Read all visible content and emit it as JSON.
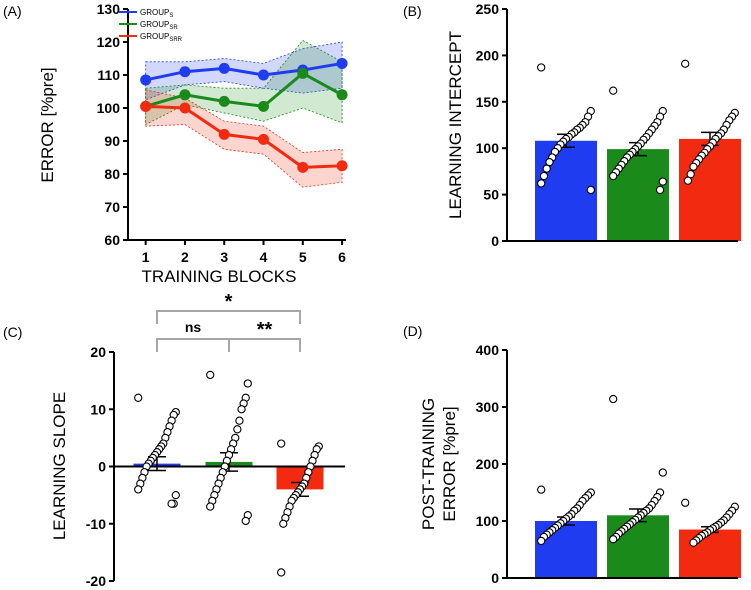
{
  "colors": {
    "S": "#1f3cf0",
    "SR": "#1a8a1a",
    "SRR": "#f22b10",
    "bracket": "#a6a6a6",
    "dot_fill": "#ffffff"
  },
  "chart_data": [
    {
      "panel": "(A)",
      "type": "line",
      "ylabel": "ERROR [%pre]",
      "xlabel": "TRAINING BLOCKS",
      "x": [
        1,
        2,
        3,
        4,
        5,
        6
      ],
      "ylim": [
        60,
        130
      ],
      "yticks": [
        60,
        70,
        80,
        90,
        100,
        110,
        120,
        130
      ],
      "legend_position": "top-left",
      "series": [
        {
          "key": "S",
          "name": "GROUP",
          "sub": "S",
          "values": [
            108.5,
            111,
            112,
            110,
            111.5,
            113.5
          ],
          "upper": [
            114,
            114,
            115,
            113.5,
            118,
            120
          ],
          "lower": [
            102.5,
            107,
            108,
            106,
            104.5,
            106
          ]
        },
        {
          "key": "SR",
          "name": "GROUP",
          "sub": "SR",
          "values": [
            100.5,
            104,
            102,
            100.5,
            110.5,
            104
          ],
          "upper": [
            106,
            107,
            106,
            106,
            120.5,
            114
          ],
          "lower": [
            95,
            101,
            98.5,
            96,
            100,
            95.5
          ]
        },
        {
          "key": "SRR",
          "name": "GROUP",
          "sub": "SRR",
          "values": [
            100.5,
            100,
            92,
            90.5,
            82,
            82.5
          ],
          "upper": [
            105.5,
            103,
            96,
            94.5,
            86.5,
            87.5
          ],
          "lower": [
            94.5,
            95,
            87.5,
            86,
            76,
            77.5
          ]
        }
      ]
    },
    {
      "panel": "(B)",
      "type": "bar",
      "ylabel": "LEARNING INTERCEPT",
      "ylim": [
        0,
        250
      ],
      "yticks": [
        0,
        50,
        100,
        150,
        200,
        250
      ],
      "bars": [
        {
          "key": "S",
          "mean": 108,
          "sem": 7,
          "points": [
            187,
            140,
            134,
            128,
            125,
            122,
            120,
            117,
            115,
            112,
            110,
            107,
            104,
            100,
            96,
            90,
            85,
            78,
            70,
            62,
            55
          ]
        },
        {
          "key": "SR",
          "mean": 99,
          "sem": 7,
          "points": [
            162,
            140,
            134,
            128,
            124,
            120,
            116,
            112,
            109,
            105,
            102,
            99,
            96,
            93,
            90,
            86,
            82,
            78,
            74,
            70,
            64,
            55
          ]
        },
        {
          "key": "SRR",
          "mean": 110,
          "sem": 7,
          "points": [
            191,
            138,
            134,
            130,
            125,
            120,
            116,
            113,
            110,
            106,
            102,
            99,
            95,
            92,
            88,
            84,
            80,
            72,
            65
          ]
        }
      ]
    },
    {
      "panel": "(C)",
      "type": "bar",
      "ylabel": "LEARNING SLOPE",
      "ylim": [
        -20,
        20
      ],
      "yticks": [
        -20,
        -10,
        0,
        10,
        20
      ],
      "bars": [
        {
          "key": "S",
          "mean": 0.5,
          "sem": 1.2,
          "points": [
            12,
            9.5,
            9,
            8,
            7,
            6,
            5,
            4,
            3.5,
            3,
            2.5,
            2,
            1.5,
            1,
            0.5,
            0,
            -1,
            -2,
            -3,
            -4,
            -5,
            -6.5,
            -6.5
          ]
        },
        {
          "key": "SR",
          "mean": 0.8,
          "sem": 1.6,
          "points": [
            16,
            14.5,
            12,
            11,
            10,
            8,
            6.5,
            5,
            4,
            3,
            2,
            1,
            0,
            -1,
            -2,
            -3,
            -4,
            -5,
            -6,
            -7,
            -8.5,
            -9.5
          ]
        },
        {
          "key": "SRR",
          "mean": -4,
          "sem": 1.2,
          "points": [
            4,
            3.5,
            3,
            2,
            1,
            0,
            -1,
            -2,
            -3,
            -3.5,
            -4,
            -4.5,
            -5,
            -5.5,
            -6,
            -7,
            -8,
            -9,
            -10,
            -18.5
          ]
        }
      ],
      "comparisons": [
        {
          "from": 0,
          "to": 2,
          "label": "*",
          "level": 1
        },
        {
          "from": 0,
          "to": 1,
          "label": "ns",
          "level": 0
        },
        {
          "from": 1,
          "to": 2,
          "label": "**",
          "level": 0
        }
      ]
    },
    {
      "panel": "(D)",
      "type": "bar",
      "ylabel": "POST-TRAINING",
      "ylabel2": "ERROR [%pre]",
      "ylim": [
        0,
        400
      ],
      "yticks": [
        0,
        100,
        200,
        300,
        400
      ],
      "bars": [
        {
          "key": "S",
          "mean": 100,
          "sem": 7,
          "points": [
            155,
            150,
            145,
            140,
            135,
            128,
            122,
            118,
            112,
            108,
            104,
            100,
            96,
            92,
            88,
            84,
            80,
            76,
            72,
            65
          ]
        },
        {
          "key": "SR",
          "mean": 110,
          "sem": 11,
          "points": [
            314,
            185,
            150,
            142,
            135,
            128,
            122,
            118,
            114,
            110,
            106,
            102,
            98,
            94,
            90,
            86,
            82,
            78,
            72,
            68
          ]
        },
        {
          "key": "SRR",
          "mean": 85,
          "sem": 5,
          "points": [
            132,
            125,
            118,
            112,
            106,
            101,
            97,
            93,
            90,
            87,
            84,
            80,
            77,
            74,
            70,
            66,
            62
          ]
        }
      ]
    }
  ]
}
